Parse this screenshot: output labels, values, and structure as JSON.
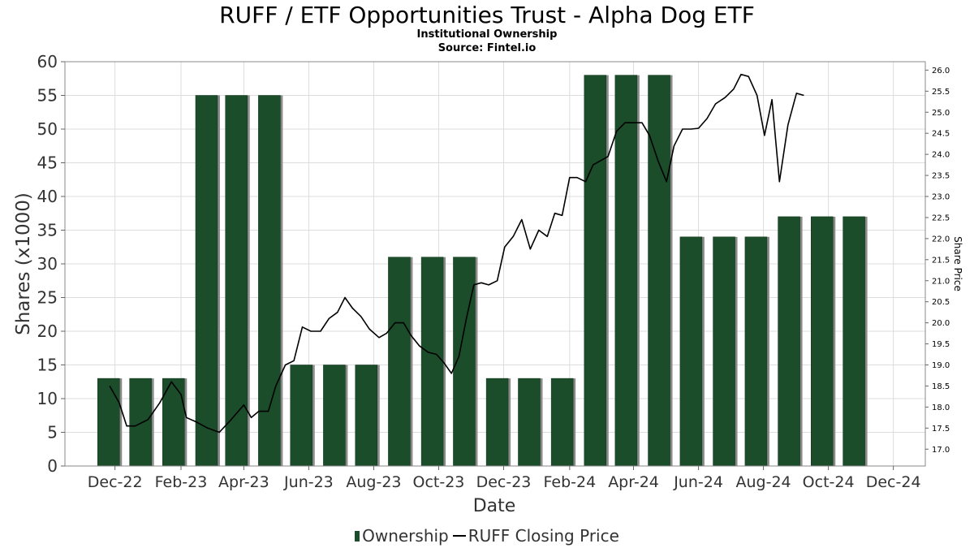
{
  "header": {
    "title": "RUFF / ETF Opportunities Trust - Alpha Dog ETF",
    "subtitle1": "Institutional Ownership",
    "subtitle2": "Source: Fintel.io"
  },
  "legend": {
    "ownership": "Ownership",
    "price": "RUFF Closing Price"
  },
  "colors": {
    "bar": "#1b4d2a",
    "bar_shadow": "#8a8a8a",
    "line": "#000000",
    "grid": "#dddddd"
  },
  "chart_data": {
    "type": "bar",
    "xlabel": "Date",
    "ylabel": "Shares (x1000)",
    "y2label": "Share Price",
    "ylim": [
      0,
      60
    ],
    "y2lim": [
      16.6,
      26.2
    ],
    "yticks": [
      "0",
      "5",
      "10",
      "15",
      "20",
      "25",
      "30",
      "35",
      "40",
      "45",
      "50",
      "55",
      "60"
    ],
    "y2ticks": [
      "17.0",
      "17.5",
      "18.0",
      "18.5",
      "19.0",
      "19.5",
      "20.0",
      "20.5",
      "21.0",
      "21.5",
      "22.0",
      "22.5",
      "23.0",
      "23.5",
      "24.0",
      "24.5",
      "25.0",
      "25.5",
      "26.0"
    ],
    "xlim": [
      "2022-10-15",
      "2024-12-31"
    ],
    "xticks": [
      {
        "label": "Dec-22",
        "date": "2022-12-01"
      },
      {
        "label": "Feb-23",
        "date": "2023-02-01"
      },
      {
        "label": "Apr-23",
        "date": "2023-04-01"
      },
      {
        "label": "Jun-23",
        "date": "2023-06-01"
      },
      {
        "label": "Aug-23",
        "date": "2023-08-01"
      },
      {
        "label": "Oct-23",
        "date": "2023-10-01"
      },
      {
        "label": "Dec-23",
        "date": "2023-12-01"
      },
      {
        "label": "Feb-24",
        "date": "2024-02-01"
      },
      {
        "label": "Apr-24",
        "date": "2024-04-01"
      },
      {
        "label": "Jun-24",
        "date": "2024-06-01"
      },
      {
        "label": "Aug-24",
        "date": "2024-08-01"
      },
      {
        "label": "Oct-24",
        "date": "2024-10-01"
      },
      {
        "label": "Dec-24",
        "date": "2024-12-01"
      }
    ],
    "series": [
      {
        "name": "Ownership",
        "type": "bar",
        "points": [
          {
            "date": "2022-11-25",
            "value": 13
          },
          {
            "date": "2022-12-25",
            "value": 13
          },
          {
            "date": "2023-01-25",
            "value": 13
          },
          {
            "date": "2023-02-25",
            "value": 55
          },
          {
            "date": "2023-03-25",
            "value": 55
          },
          {
            "date": "2023-04-25",
            "value": 55
          },
          {
            "date": "2023-05-25",
            "value": 15
          },
          {
            "date": "2023-06-25",
            "value": 15
          },
          {
            "date": "2023-07-25",
            "value": 15
          },
          {
            "date": "2023-08-25",
            "value": 31
          },
          {
            "date": "2023-09-25",
            "value": 31
          },
          {
            "date": "2023-10-25",
            "value": 31
          },
          {
            "date": "2023-11-25",
            "value": 13
          },
          {
            "date": "2023-12-25",
            "value": 13
          },
          {
            "date": "2024-01-25",
            "value": 13
          },
          {
            "date": "2024-02-25",
            "value": 58
          },
          {
            "date": "2024-03-25",
            "value": 58
          },
          {
            "date": "2024-04-25",
            "value": 58
          },
          {
            "date": "2024-05-25",
            "value": 34
          },
          {
            "date": "2024-06-25",
            "value": 34
          },
          {
            "date": "2024-07-25",
            "value": 34
          },
          {
            "date": "2024-08-25",
            "value": 37
          },
          {
            "date": "2024-09-25",
            "value": 37
          },
          {
            "date": "2024-10-25",
            "value": 37
          }
        ]
      },
      {
        "name": "RUFF Closing Price",
        "type": "line",
        "points": [
          {
            "date": "2022-11-26",
            "value": 18.5
          },
          {
            "date": "2022-12-05",
            "value": 18.1
          },
          {
            "date": "2022-12-12",
            "value": 17.55
          },
          {
            "date": "2022-12-20",
            "value": 17.55
          },
          {
            "date": "2023-01-01",
            "value": 17.7
          },
          {
            "date": "2023-01-12",
            "value": 18.1
          },
          {
            "date": "2023-01-23",
            "value": 18.6
          },
          {
            "date": "2023-02-01",
            "value": 18.3
          },
          {
            "date": "2023-02-06",
            "value": 17.75
          },
          {
            "date": "2023-02-15",
            "value": 17.65
          },
          {
            "date": "2023-02-26",
            "value": 17.5
          },
          {
            "date": "2023-03-09",
            "value": 17.4
          },
          {
            "date": "2023-03-20",
            "value": 17.7
          },
          {
            "date": "2023-04-01",
            "value": 18.05
          },
          {
            "date": "2023-04-08",
            "value": 17.75
          },
          {
            "date": "2023-04-15",
            "value": 17.9
          },
          {
            "date": "2023-04-24",
            "value": 17.9
          },
          {
            "date": "2023-05-01",
            "value": 18.5
          },
          {
            "date": "2023-05-10",
            "value": 19.0
          },
          {
            "date": "2023-05-18",
            "value": 19.1
          },
          {
            "date": "2023-05-26",
            "value": 19.9
          },
          {
            "date": "2023-06-03",
            "value": 19.8
          },
          {
            "date": "2023-06-12",
            "value": 19.8
          },
          {
            "date": "2023-06-20",
            "value": 20.1
          },
          {
            "date": "2023-06-28",
            "value": 20.25
          },
          {
            "date": "2023-07-05",
            "value": 20.6
          },
          {
            "date": "2023-07-12",
            "value": 20.35
          },
          {
            "date": "2023-07-20",
            "value": 20.15
          },
          {
            "date": "2023-07-28",
            "value": 19.85
          },
          {
            "date": "2023-08-06",
            "value": 19.65
          },
          {
            "date": "2023-08-13",
            "value": 19.75
          },
          {
            "date": "2023-08-21",
            "value": 20.0
          },
          {
            "date": "2023-08-29",
            "value": 20.0
          },
          {
            "date": "2023-09-05",
            "value": 19.7
          },
          {
            "date": "2023-09-13",
            "value": 19.45
          },
          {
            "date": "2023-09-21",
            "value": 19.3
          },
          {
            "date": "2023-09-29",
            "value": 19.25
          },
          {
            "date": "2023-10-06",
            "value": 19.05
          },
          {
            "date": "2023-10-13",
            "value": 18.8
          },
          {
            "date": "2023-10-20",
            "value": 19.2
          },
          {
            "date": "2023-10-27",
            "value": 20.1
          },
          {
            "date": "2023-11-03",
            "value": 20.9
          },
          {
            "date": "2023-11-10",
            "value": 20.95
          },
          {
            "date": "2023-11-17",
            "value": 20.9
          },
          {
            "date": "2023-11-25",
            "value": 21.0
          },
          {
            "date": "2023-12-02",
            "value": 21.8
          },
          {
            "date": "2023-12-10",
            "value": 22.05
          },
          {
            "date": "2023-12-18",
            "value": 22.45
          },
          {
            "date": "2023-12-26",
            "value": 21.75
          },
          {
            "date": "2024-01-03",
            "value": 22.2
          },
          {
            "date": "2024-01-11",
            "value": 22.05
          },
          {
            "date": "2024-01-18",
            "value": 22.6
          },
          {
            "date": "2024-01-25",
            "value": 22.55
          },
          {
            "date": "2024-02-01",
            "value": 23.45
          },
          {
            "date": "2024-02-08",
            "value": 23.45
          },
          {
            "date": "2024-02-16",
            "value": 23.35
          },
          {
            "date": "2024-02-23",
            "value": 23.75
          },
          {
            "date": "2024-03-01",
            "value": 23.85
          },
          {
            "date": "2024-03-08",
            "value": 23.95
          },
          {
            "date": "2024-03-16",
            "value": 24.55
          },
          {
            "date": "2024-03-24",
            "value": 24.75
          },
          {
            "date": "2024-04-01",
            "value": 24.75
          },
          {
            "date": "2024-04-09",
            "value": 24.75
          },
          {
            "date": "2024-04-16",
            "value": 24.45
          },
          {
            "date": "2024-04-24",
            "value": 23.85
          },
          {
            "date": "2024-05-02",
            "value": 23.35
          },
          {
            "date": "2024-05-09",
            "value": 24.2
          },
          {
            "date": "2024-05-17",
            "value": 24.6
          },
          {
            "date": "2024-05-25",
            "value": 24.6
          },
          {
            "date": "2024-06-01",
            "value": 24.62
          },
          {
            "date": "2024-06-09",
            "value": 24.85
          },
          {
            "date": "2024-06-17",
            "value": 25.2
          },
          {
            "date": "2024-06-26",
            "value": 25.35
          },
          {
            "date": "2024-07-04",
            "value": 25.55
          },
          {
            "date": "2024-07-11",
            "value": 25.9
          },
          {
            "date": "2024-07-18",
            "value": 25.85
          },
          {
            "date": "2024-07-26",
            "value": 25.4
          },
          {
            "date": "2024-08-02",
            "value": 24.45
          },
          {
            "date": "2024-08-09",
            "value": 25.3
          },
          {
            "date": "2024-08-16",
            "value": 23.35
          },
          {
            "date": "2024-08-24",
            "value": 24.7
          },
          {
            "date": "2024-09-01",
            "value": 25.45
          },
          {
            "date": "2024-09-08",
            "value": 25.4
          }
        ]
      }
    ],
    "grid": true,
    "legend_position": "bottom"
  }
}
